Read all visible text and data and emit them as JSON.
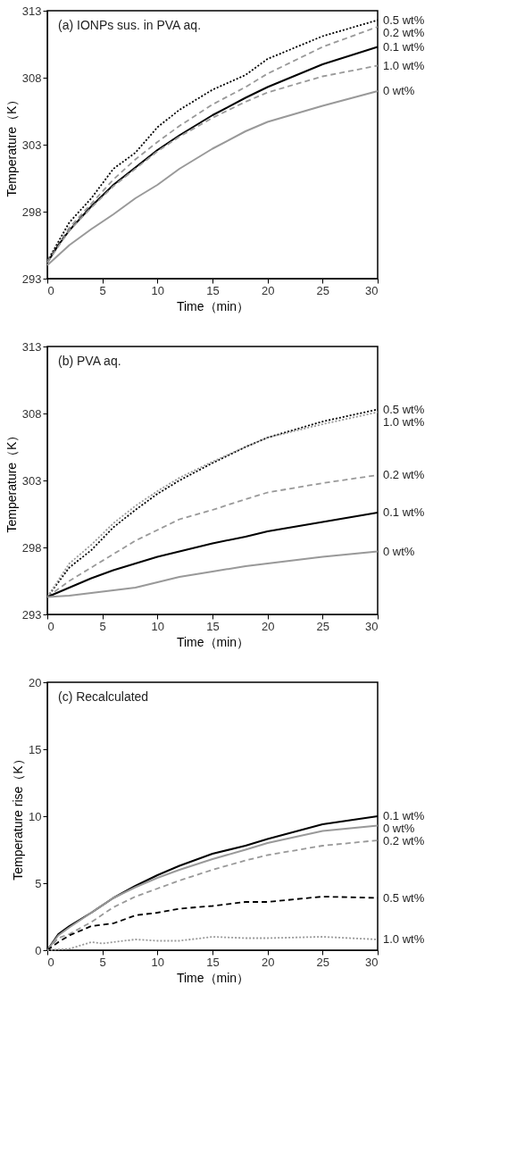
{
  "chart_data": [
    {
      "type": "line",
      "title": "(a) IONPs sus. in PVA aq.",
      "xlabel": "Time（min）",
      "ylabel": "Temperature（K）",
      "xlim": [
        0,
        30
      ],
      "xticks": [
        0,
        5,
        10,
        15,
        20,
        25,
        30
      ],
      "ylim": [
        293,
        313
      ],
      "yticks": [
        293,
        298,
        303,
        308,
        313
      ],
      "grid": false,
      "marker": "none",
      "series": [
        {
          "name": "0.5 wt%",
          "color": "#000000",
          "line_style": "dotted",
          "x": [
            0,
            2,
            4,
            6,
            8,
            10,
            12,
            15,
            18,
            20,
            25,
            30
          ],
          "values": [
            294.3,
            297.2,
            299.0,
            301.2,
            302.4,
            304.3,
            305.6,
            307.1,
            308.2,
            309.4,
            311.1,
            312.3
          ]
        },
        {
          "name": "0.2 wt%",
          "color": "#999999",
          "line_style": "dashed",
          "x": [
            0,
            2,
            4,
            6,
            8,
            10,
            12,
            15,
            18,
            20,
            25,
            30
          ],
          "values": [
            294.3,
            296.8,
            298.6,
            300.4,
            301.9,
            303.2,
            304.4,
            306.0,
            307.3,
            308.3,
            310.3,
            311.8
          ]
        },
        {
          "name": "0.1 wt%",
          "color": "#000000",
          "line_style": "solid",
          "x": [
            0,
            1,
            2,
            4,
            6,
            8,
            10,
            12,
            15,
            18,
            20,
            25,
            30
          ],
          "values": [
            294.2,
            295.5,
            296.6,
            298.4,
            300.0,
            301.3,
            302.6,
            303.7,
            305.2,
            306.5,
            307.3,
            309.0,
            310.3
          ]
        },
        {
          "name": "1.0 wt%",
          "color": "#999999",
          "line_style": "dashed",
          "x": [
            0,
            2,
            4,
            6,
            8,
            10,
            12,
            15,
            18,
            20,
            25,
            30
          ],
          "values": [
            294.2,
            296.6,
            298.3,
            299.9,
            301.2,
            302.5,
            303.6,
            305.0,
            306.2,
            306.9,
            308.1,
            308.9
          ]
        },
        {
          "name": "0 wt%",
          "color": "#999999",
          "line_style": "solid",
          "x": [
            0,
            2,
            4,
            6,
            8,
            10,
            12,
            15,
            18,
            20,
            25,
            30
          ],
          "values": [
            294.0,
            295.5,
            296.7,
            297.8,
            299.0,
            300.0,
            301.2,
            302.7,
            304.0,
            304.7,
            305.9,
            307.0
          ]
        }
      ]
    },
    {
      "type": "line",
      "title": "(b) PVA aq.",
      "xlabel": "Time（min）",
      "ylabel": "Temperature（K）",
      "xlim": [
        0,
        30
      ],
      "xticks": [
        0,
        5,
        10,
        15,
        20,
        25,
        30
      ],
      "ylim": [
        293,
        313
      ],
      "yticks": [
        293,
        298,
        303,
        308,
        313
      ],
      "grid": false,
      "marker": "none",
      "series": [
        {
          "name": "0.5 wt%",
          "color": "#000000",
          "line_style": "dotted",
          "x": [
            0,
            2,
            4,
            6,
            8,
            10,
            12,
            15,
            18,
            20,
            25,
            30
          ],
          "values": [
            294.3,
            296.5,
            297.8,
            299.5,
            300.8,
            302.0,
            303.0,
            304.3,
            305.5,
            306.2,
            307.4,
            308.3
          ]
        },
        {
          "name": "1.0 wt%",
          "color": "#999999",
          "line_style": "dotted",
          "x": [
            0,
            2,
            4,
            6,
            8,
            10,
            12,
            15,
            18,
            20,
            25,
            30
          ],
          "values": [
            294.3,
            296.8,
            298.2,
            299.8,
            301.1,
            302.2,
            303.2,
            304.4,
            305.5,
            306.2,
            307.2,
            308.1
          ]
        },
        {
          "name": "0.2 wt%",
          "color": "#999999",
          "line_style": "dashed",
          "x": [
            0,
            2,
            4,
            6,
            8,
            10,
            12,
            15,
            18,
            20,
            25,
            30
          ],
          "values": [
            294.3,
            295.5,
            296.5,
            297.5,
            298.5,
            299.3,
            300.1,
            300.8,
            301.6,
            302.1,
            302.8,
            303.4
          ]
        },
        {
          "name": "0.1 wt%",
          "color": "#000000",
          "line_style": "solid",
          "x": [
            0,
            2,
            4,
            6,
            8,
            10,
            12,
            15,
            18,
            20,
            25,
            30
          ],
          "values": [
            294.3,
            295.0,
            295.7,
            296.3,
            296.8,
            297.3,
            297.7,
            298.3,
            298.8,
            299.2,
            299.9,
            300.6
          ]
        },
        {
          "name": "0 wt%",
          "color": "#999999",
          "line_style": "solid",
          "x": [
            0,
            2,
            4,
            6,
            8,
            10,
            12,
            15,
            18,
            20,
            25,
            30
          ],
          "values": [
            294.3,
            294.4,
            294.6,
            294.8,
            295.0,
            295.4,
            295.8,
            296.2,
            296.6,
            296.8,
            297.3,
            297.7
          ]
        }
      ]
    },
    {
      "type": "line",
      "title": "(c) Recalculated",
      "xlabel": "Time（min）",
      "ylabel": "Temperature rise（K）",
      "xlim": [
        0,
        30
      ],
      "xticks": [
        0,
        5,
        10,
        15,
        20,
        25,
        30
      ],
      "ylim": [
        0,
        20
      ],
      "yticks": [
        0,
        5,
        10,
        15,
        20
      ],
      "grid": false,
      "marker": "none",
      "series": [
        {
          "name": "0.1 wt%",
          "color": "#000000",
          "line_style": "solid",
          "x": [
            0,
            1,
            2,
            4,
            6,
            8,
            10,
            12,
            15,
            18,
            20,
            25,
            30
          ],
          "values": [
            0,
            1.2,
            1.8,
            2.8,
            3.9,
            4.8,
            5.6,
            6.3,
            7.2,
            7.8,
            8.3,
            9.4,
            10.0
          ]
        },
        {
          "name": "0 wt%",
          "color": "#999999",
          "line_style": "solid",
          "x": [
            0,
            1,
            2,
            4,
            6,
            8,
            10,
            12,
            15,
            18,
            20,
            25,
            30
          ],
          "values": [
            0,
            1.1,
            1.7,
            2.8,
            3.9,
            4.7,
            5.4,
            6.0,
            6.8,
            7.5,
            8.0,
            8.9,
            9.3
          ]
        },
        {
          "name": "0.2 wt%",
          "color": "#999999",
          "line_style": "dashed",
          "x": [
            0,
            1,
            2,
            4,
            6,
            8,
            10,
            12,
            15,
            18,
            20,
            25,
            30
          ],
          "values": [
            0,
            0.9,
            1.2,
            2.1,
            3.2,
            4.0,
            4.6,
            5.2,
            6.0,
            6.7,
            7.1,
            7.8,
            8.2
          ]
        },
        {
          "name": "0.5 wt%",
          "color": "#000000",
          "line_style": "dashed",
          "x": [
            0,
            1,
            2,
            4,
            6,
            8,
            10,
            12,
            15,
            18,
            20,
            25,
            30
          ],
          "values": [
            0,
            0.6,
            1.1,
            1.8,
            2.0,
            2.6,
            2.8,
            3.1,
            3.3,
            3.6,
            3.6,
            4.0,
            3.9
          ]
        },
        {
          "name": "1.0 wt%",
          "color": "#999999",
          "line_style": "dotted",
          "x": [
            0,
            2,
            4,
            5,
            8,
            10,
            12,
            15,
            18,
            20,
            25,
            30
          ],
          "values": [
            0,
            0.1,
            0.6,
            0.5,
            0.8,
            0.7,
            0.7,
            1.0,
            0.9,
            0.9,
            1.0,
            0.8
          ]
        }
      ]
    }
  ]
}
